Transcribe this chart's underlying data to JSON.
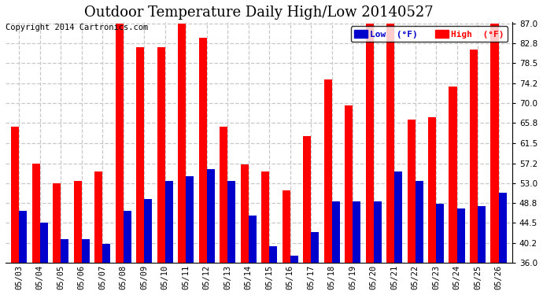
{
  "title": "Outdoor Temperature Daily High/Low 20140527",
  "copyright": "Copyright 2014 Cartronics.com",
  "legend_low": "Low  (°F)",
  "legend_high": "High  (°F)",
  "dates": [
    "05/03",
    "05/04",
    "05/05",
    "05/06",
    "05/07",
    "05/08",
    "05/09",
    "05/10",
    "05/11",
    "05/12",
    "05/13",
    "05/14",
    "05/15",
    "05/16",
    "05/17",
    "05/18",
    "05/19",
    "05/20",
    "05/21",
    "05/22",
    "05/23",
    "05/24",
    "05/25",
    "05/26"
  ],
  "highs": [
    65.0,
    57.2,
    53.0,
    53.5,
    55.5,
    87.0,
    82.0,
    82.0,
    87.0,
    84.0,
    65.0,
    57.0,
    55.5,
    51.5,
    63.0,
    75.0,
    69.5,
    87.0,
    87.0,
    66.5,
    67.0,
    73.5,
    81.5,
    87.0
  ],
  "lows": [
    47.0,
    44.5,
    41.0,
    41.0,
    40.0,
    47.0,
    49.5,
    53.5,
    54.5,
    56.0,
    53.5,
    46.0,
    39.5,
    37.5,
    42.5,
    49.0,
    49.0,
    49.0,
    55.5,
    53.5,
    48.5,
    47.5,
    48.0,
    51.0
  ],
  "high_color": "#ff0000",
  "low_color": "#0000cc",
  "bg_color": "#ffffff",
  "grid_color": "#c8c8c8",
  "ylim_min": 36.0,
  "ylim_max": 87.0,
  "yticks": [
    36.0,
    40.2,
    44.5,
    48.8,
    53.0,
    57.2,
    61.5,
    65.8,
    70.0,
    74.2,
    78.5,
    82.8,
    87.0
  ],
  "title_fontsize": 13,
  "copyright_fontsize": 7.5,
  "bar_width": 0.38
}
